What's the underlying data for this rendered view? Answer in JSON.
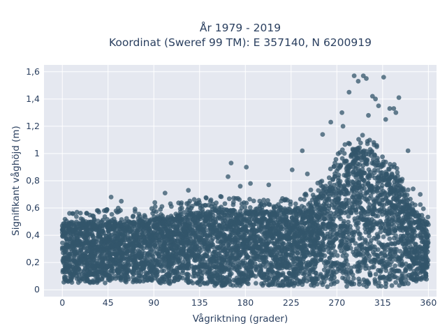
{
  "chart_data": {
    "type": "scatter",
    "title_line1": "År 1979 - 2019",
    "title_line2": "Koordinat (Sweref 99 TM): E 357140, N 6200919",
    "xlabel": "Vågriktning (grader)",
    "ylabel": "Signifikant våghöjd (m)",
    "xlim": [
      -18,
      368
    ],
    "ylim": [
      -0.05,
      1.65
    ],
    "x_ticks": [
      0,
      45,
      90,
      135,
      180,
      225,
      270,
      315,
      360
    ],
    "y_ticks": [
      0,
      0.2,
      0.4,
      0.6,
      0.8,
      1,
      1.2,
      1.4,
      1.6
    ],
    "y_tick_labels": [
      "0",
      "0,2",
      "0,4",
      "0,6",
      "0,8",
      "1",
      "1,2",
      "1,4",
      "1,6"
    ],
    "grid": true,
    "marker_color": "#33566b",
    "background_color": "#e5e8f0",
    "envelope": [
      {
        "direction": 0,
        "lower": 0.05,
        "upper": 0.5
      },
      {
        "direction": 30,
        "lower": 0.05,
        "upper": 0.5
      },
      {
        "direction": 60,
        "lower": 0.05,
        "upper": 0.5
      },
      {
        "direction": 90,
        "lower": 0.05,
        "upper": 0.52
      },
      {
        "direction": 120,
        "lower": 0.04,
        "upper": 0.56
      },
      {
        "direction": 150,
        "lower": 0.03,
        "upper": 0.6
      },
      {
        "direction": 180,
        "lower": 0.03,
        "upper": 0.58
      },
      {
        "direction": 210,
        "lower": 0.03,
        "upper": 0.58
      },
      {
        "direction": 240,
        "lower": 0.03,
        "upper": 0.62
      },
      {
        "direction": 255,
        "lower": 0.02,
        "upper": 0.72
      },
      {
        "direction": 270,
        "lower": 0.02,
        "upper": 0.9
      },
      {
        "direction": 285,
        "lower": 0.02,
        "upper": 1.05
      },
      {
        "direction": 300,
        "lower": 0.02,
        "upper": 1.05
      },
      {
        "direction": 315,
        "lower": 0.02,
        "upper": 0.95
      },
      {
        "direction": 330,
        "lower": 0.03,
        "upper": 0.8
      },
      {
        "direction": 345,
        "lower": 0.05,
        "upper": 0.6
      },
      {
        "direction": 360,
        "lower": 0.05,
        "upper": 0.48
      }
    ],
    "outliers": [
      {
        "x": 287,
        "y": 1.57
      },
      {
        "x": 296,
        "y": 1.57
      },
      {
        "x": 299,
        "y": 1.55
      },
      {
        "x": 316,
        "y": 1.56
      },
      {
        "x": 291,
        "y": 1.53
      },
      {
        "x": 305,
        "y": 1.42
      },
      {
        "x": 331,
        "y": 1.41
      },
      {
        "x": 282,
        "y": 1.45
      },
      {
        "x": 308,
        "y": 1.4
      },
      {
        "x": 322,
        "y": 1.33
      },
      {
        "x": 326,
        "y": 1.33
      },
      {
        "x": 311,
        "y": 1.35
      },
      {
        "x": 275,
        "y": 1.3
      },
      {
        "x": 328,
        "y": 1.3
      },
      {
        "x": 301,
        "y": 1.28
      },
      {
        "x": 264,
        "y": 1.23
      },
      {
        "x": 276,
        "y": 1.2
      },
      {
        "x": 318,
        "y": 1.25
      },
      {
        "x": 256,
        "y": 1.14
      },
      {
        "x": 340,
        "y": 1.02
      },
      {
        "x": 236,
        "y": 1.02
      },
      {
        "x": 166,
        "y": 0.93
      },
      {
        "x": 181,
        "y": 0.9
      },
      {
        "x": 226,
        "y": 0.88
      },
      {
        "x": 163,
        "y": 0.83
      },
      {
        "x": 241,
        "y": 0.85
      },
      {
        "x": 175,
        "y": 0.76
      },
      {
        "x": 185,
        "y": 0.78
      },
      {
        "x": 203,
        "y": 0.77
      },
      {
        "x": 48,
        "y": 0.68
      },
      {
        "x": 101,
        "y": 0.71
      },
      {
        "x": 124,
        "y": 0.73
      },
      {
        "x": 91,
        "y": 0.64
      },
      {
        "x": 55,
        "y": 0.6
      },
      {
        "x": 58,
        "y": 0.65
      },
      {
        "x": 10,
        "y": 0.56
      },
      {
        "x": 36,
        "y": 0.57
      },
      {
        "x": 352,
        "y": 0.7
      },
      {
        "x": 345,
        "y": 0.74
      }
    ]
  }
}
